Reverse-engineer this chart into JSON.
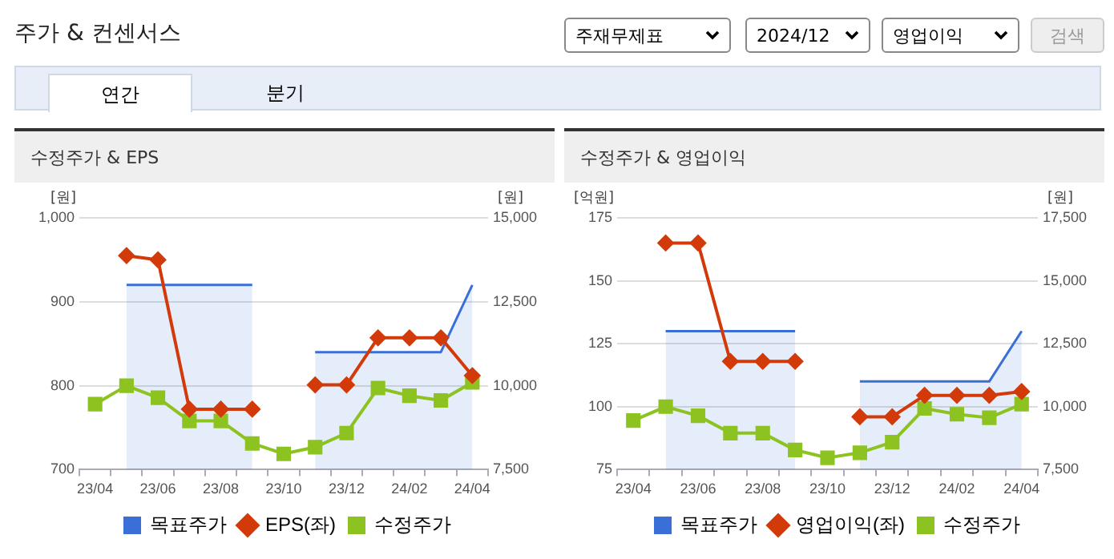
{
  "chart_data": [
    {
      "type": "other",
      "title": "주가 & 컨센서스",
      "annotations": [
        "주재무제표",
        "2024/12",
        "영업이익",
        "검색",
        "연간",
        "분기"
      ]
    },
    {
      "type": "line",
      "title": "수정주가 & EPS",
      "ylabel": "[원]",
      "y2label": "[원]",
      "categories": [
        "23/04",
        null,
        "23/06",
        null,
        "23/08",
        null,
        "23/10",
        null,
        "23/12",
        null,
        "24/02",
        null,
        "24/04"
      ],
      "series": [
        {
          "name": "목표주가",
          "type": "area",
          "axis": "y2",
          "color": "#3a6fd8",
          "marker": "none",
          "values": [
            null,
            13000,
            13000,
            13000,
            13000,
            13000,
            null,
            11000,
            11000,
            11000,
            11000,
            11000,
            13000
          ]
        },
        {
          "name": "EPS(좌)",
          "type": "line",
          "axis": "y",
          "color": "#d23a0a",
          "marker": "diamond",
          "values": [
            null,
            955,
            950,
            772,
            772,
            772,
            null,
            801,
            801,
            857,
            857,
            857,
            812
          ]
        },
        {
          "name": "수정주가",
          "type": "line",
          "axis": "y2",
          "color": "#8cc320",
          "marker": "square",
          "values": [
            9450,
            10000,
            9640,
            8950,
            8950,
            8280,
            7970,
            8170,
            8590,
            9930,
            9700,
            9560,
            10100
          ]
        }
      ],
      "ylim": [
        700,
        1000
      ],
      "yticks": [
        700,
        800,
        900,
        {
          "value": 1000,
          "label": "1,000"
        }
      ],
      "y2lim": [
        7500,
        15000
      ],
      "y2ticks": [
        {
          "value": 7500,
          "label": "7,500"
        },
        {
          "value": 10000,
          "label": "10,000"
        },
        {
          "value": 12500,
          "label": "12,500"
        },
        {
          "value": 15000,
          "label": "15,000"
        }
      ],
      "grid": "y",
      "legend": "bottom"
    },
    {
      "type": "line",
      "title": "수정주가 & 영업이익",
      "ylabel": "[억원]",
      "y2label": "[원]",
      "categories": [
        "23/04",
        null,
        "23/06",
        null,
        "23/08",
        null,
        "23/10",
        null,
        "23/12",
        null,
        "24/02",
        null,
        "24/04"
      ],
      "series": [
        {
          "name": "목표주가",
          "type": "area",
          "axis": "y2",
          "color": "#3a6fd8",
          "marker": "none",
          "values": [
            null,
            13000,
            13000,
            13000,
            13000,
            13000,
            null,
            11000,
            11000,
            11000,
            11000,
            11000,
            13000
          ]
        },
        {
          "name": "영업이익(좌)",
          "type": "line",
          "axis": "y",
          "color": "#d23a0a",
          "marker": "diamond",
          "values": [
            null,
            165,
            165,
            118,
            118,
            118,
            null,
            96,
            96,
            104.5,
            104.5,
            104.5,
            106
          ]
        },
        {
          "name": "수정주가",
          "type": "line",
          "axis": "y2",
          "color": "#8cc320",
          "marker": "square",
          "values": [
            9450,
            10000,
            9640,
            8950,
            8950,
            8280,
            7970,
            8170,
            8590,
            9930,
            9700,
            9560,
            10100
          ]
        }
      ],
      "ylim": [
        75,
        175
      ],
      "yticks": [
        75,
        100,
        125,
        150,
        175
      ],
      "y2lim": [
        7500,
        17500
      ],
      "y2ticks": [
        {
          "value": 7500,
          "label": "7,500"
        },
        {
          "value": 10000,
          "label": "10,000"
        },
        {
          "value": 12500,
          "label": "12,500"
        },
        {
          "value": 15000,
          "label": "15,000"
        },
        {
          "value": 17500,
          "label": "17,500"
        }
      ],
      "grid": "y",
      "legend": "bottom"
    }
  ]
}
